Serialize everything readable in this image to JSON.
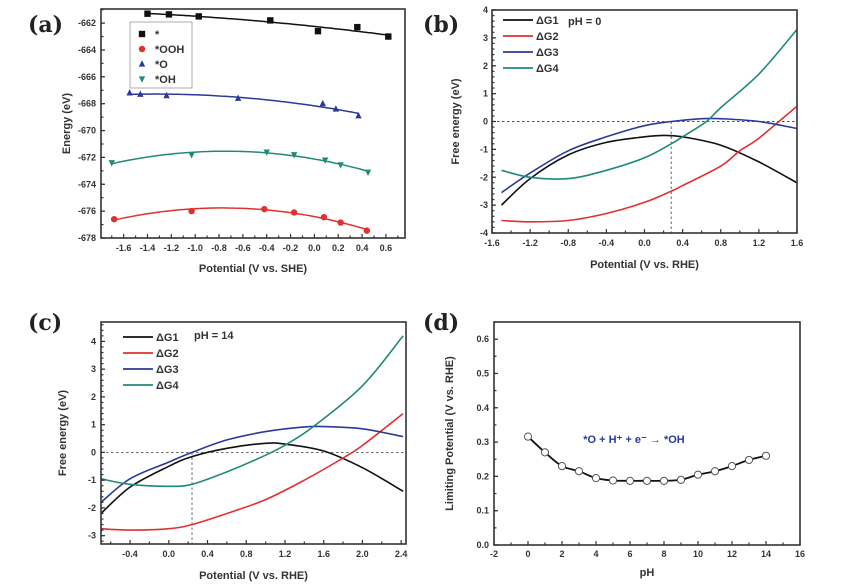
{
  "chart_data": [
    {
      "id": "a",
      "panel_label": "(a)",
      "type": "scatter",
      "fit": "quadratic",
      "title": "",
      "xlabel": "Potential (V vs. SHE)",
      "ylabel": "Energy (eV)",
      "xlim": [
        -1.79,
        0.76
      ],
      "ylim": [
        -678,
        -660.95
      ],
      "xticks": [
        -1.6,
        -1.4,
        -1.2,
        -1.0,
        -0.8,
        -0.6,
        -0.4,
        -0.2,
        0.0,
        0.2,
        0.4,
        0.6
      ],
      "xtick_labels": [
        "-1.6",
        "-1.4",
        "-1.2",
        "-1.0",
        "-0.8",
        "-0.6",
        "-0.4",
        "-0.2",
        "0.0",
        "0.2",
        "0.4",
        "0.6"
      ],
      "yticks": [
        -678,
        -676,
        -674,
        -672,
        -670,
        -668,
        -666,
        -664,
        -662
      ],
      "ytick_labels": [
        "-678",
        "-676",
        "-674",
        "-672",
        "-670",
        "-668",
        "-666",
        "-664",
        "-662"
      ],
      "grid": false,
      "legend_position": "top-left",
      "series": [
        {
          "name": "*",
          "color": "#111111",
          "marker": "square",
          "x": [
            -1.4,
            -1.22,
            -0.97,
            -0.37,
            0.03,
            0.36,
            0.62
          ],
          "y": [
            -661.3,
            -661.35,
            -661.5,
            -661.8,
            -662.6,
            -662.3,
            -663.0
          ]
        },
        {
          "name": "*OOH",
          "color": "#e03030",
          "marker": "circle",
          "x": [
            -1.68,
            -1.03,
            -0.42,
            -0.17,
            0.08,
            0.22,
            0.44
          ],
          "y": [
            -676.6,
            -676.0,
            -675.85,
            -676.1,
            -676.45,
            -676.85,
            -677.45
          ]
        },
        {
          "name": "*O",
          "color": "#2b3a9a",
          "marker": "triangle-up",
          "x": [
            -1.55,
            -1.46,
            -1.24,
            -0.64,
            0.07,
            0.18,
            0.37
          ],
          "y": [
            -667.2,
            -667.3,
            -667.4,
            -667.6,
            -668.0,
            -668.4,
            -668.9
          ]
        },
        {
          "name": "*OH",
          "color": "#1f8a7a",
          "marker": "triangle-down",
          "x": [
            -1.7,
            -1.03,
            -0.4,
            -0.17,
            0.09,
            0.22,
            0.45
          ],
          "y": [
            -672.4,
            -671.8,
            -671.6,
            -671.8,
            -672.2,
            -672.55,
            -673.1
          ]
        }
      ]
    },
    {
      "id": "b",
      "panel_label": "(b)",
      "type": "line",
      "title": "",
      "annotation": "pH = 0",
      "xlabel": "Potential (V vs. RHE)",
      "ylabel": "Free energy (eV)",
      "xlim": [
        -1.6,
        1.6
      ],
      "ylim": [
        -4,
        4
      ],
      "xticks": [
        -1.6,
        -1.2,
        -0.8,
        -0.4,
        0.0,
        0.4,
        0.8,
        1.2,
        1.6
      ],
      "xtick_labels": [
        "-1.6",
        "-1.2",
        "-0.8",
        "-0.4",
        "0.0",
        "0.4",
        "0.8",
        "1.2",
        "1.6"
      ],
      "yticks": [
        -4,
        -3,
        -2,
        -1,
        0,
        1,
        2,
        3,
        4
      ],
      "ytick_labels": [
        "-4",
        "-3",
        "-2",
        "-1",
        "0",
        "1",
        "2",
        "3",
        "4"
      ],
      "grid": false,
      "legend_position": "top-left",
      "reference_lines": {
        "y": 0,
        "x": 0.28
      },
      "series": [
        {
          "name": "ΔG1",
          "color": "#111111",
          "x": [
            -1.5,
            -1.2,
            -0.8,
            -0.4,
            0.0,
            0.2,
            0.4,
            0.8,
            1.2,
            1.6
          ],
          "y": [
            -3.0,
            -2.05,
            -1.2,
            -0.75,
            -0.55,
            -0.5,
            -0.55,
            -0.85,
            -1.45,
            -2.2
          ]
        },
        {
          "name": "ΔG2",
          "color": "#e03030",
          "x": [
            -1.5,
            -1.2,
            -0.8,
            -0.4,
            0.0,
            0.28,
            0.4,
            0.8,
            1.0,
            1.2,
            1.6
          ],
          "y": [
            -3.55,
            -3.6,
            -3.55,
            -3.3,
            -2.9,
            -2.5,
            -2.3,
            -1.6,
            -1.05,
            -0.6,
            0.55
          ]
        },
        {
          "name": "ΔG3",
          "color": "#2b3a9a",
          "x": [
            -1.5,
            -1.2,
            -0.8,
            -0.4,
            0.0,
            0.28,
            0.6,
            0.8,
            1.2,
            1.6
          ],
          "y": [
            -2.55,
            -1.85,
            -1.05,
            -0.55,
            -0.15,
            0.0,
            0.1,
            0.1,
            0.0,
            -0.25
          ]
        },
        {
          "name": "ΔG4",
          "color": "#1f8a7a",
          "x": [
            -1.5,
            -1.2,
            -0.8,
            -0.4,
            0.0,
            0.28,
            0.4,
            0.65,
            0.8,
            1.2,
            1.6
          ],
          "y": [
            -1.75,
            -2.0,
            -2.05,
            -1.75,
            -1.3,
            -0.8,
            -0.55,
            0.0,
            0.5,
            1.7,
            3.3
          ]
        }
      ]
    },
    {
      "id": "c",
      "panel_label": "(c)",
      "type": "line",
      "title": "",
      "annotation": "pH = 14",
      "xlabel": "Potential (V vs. RHE)",
      "ylabel": "Free energy (eV)",
      "xlim": [
        -0.7,
        2.45
      ],
      "ylim": [
        -3.3,
        4.7
      ],
      "xticks": [
        -0.4,
        0.0,
        0.4,
        0.8,
        1.2,
        1.6,
        2.0,
        2.4
      ],
      "xtick_labels": [
        "-0.4",
        "0.0",
        "0.4",
        "0.8",
        "1.2",
        "1.6",
        "2.0",
        "2.4"
      ],
      "yticks": [
        -3,
        -2,
        -1,
        0,
        1,
        2,
        3,
        4
      ],
      "ytick_labels": [
        "-3",
        "-2",
        "-1",
        "0",
        "1",
        "2",
        "3",
        "4"
      ],
      "grid": false,
      "legend_position": "top-left",
      "reference_lines": {
        "y": 0,
        "x": 0.24
      },
      "series": [
        {
          "name": "ΔG1",
          "color": "#111111",
          "x": [
            -0.7,
            -0.4,
            0.0,
            0.24,
            0.6,
            1.0,
            1.2,
            1.6,
            2.0,
            2.42
          ],
          "y": [
            -2.2,
            -1.25,
            -0.5,
            -0.15,
            0.15,
            0.33,
            0.3,
            0.05,
            -0.55,
            -1.4
          ]
        },
        {
          "name": "ΔG2",
          "color": "#e03030",
          "x": [
            -0.7,
            -0.4,
            0.0,
            0.24,
            0.6,
            1.0,
            1.4,
            1.8,
            2.0,
            2.42
          ],
          "y": [
            -2.75,
            -2.8,
            -2.75,
            -2.6,
            -2.2,
            -1.7,
            -1.0,
            -0.2,
            0.25,
            1.4
          ]
        },
        {
          "name": "ΔG3",
          "color": "#2b3a9a",
          "x": [
            -0.7,
            -0.4,
            0.0,
            0.24,
            0.6,
            1.0,
            1.4,
            1.6,
            2.0,
            2.42
          ],
          "y": [
            -1.8,
            -0.95,
            -0.35,
            0.0,
            0.45,
            0.75,
            0.92,
            0.93,
            0.85,
            0.57
          ]
        },
        {
          "name": "ΔG4",
          "color": "#1f8a7a",
          "x": [
            -0.7,
            -0.4,
            0.0,
            0.24,
            0.6,
            1.0,
            1.22,
            1.5,
            2.0,
            2.42
          ],
          "y": [
            -0.95,
            -1.15,
            -1.22,
            -1.15,
            -0.7,
            -0.1,
            0.3,
            0.95,
            2.4,
            4.2
          ]
        }
      ]
    },
    {
      "id": "d",
      "panel_label": "(d)",
      "type": "line",
      "markers": "open-circle",
      "title": "",
      "annotation": "*O + H⁺ + e⁻ → *OH",
      "annotation_color": "#2b3a9a",
      "xlabel": "pH",
      "ylabel": "Limiting Potential (V vs. RHE)",
      "xlim": [
        -2,
        16
      ],
      "ylim": [
        0.0,
        0.65
      ],
      "xticks": [
        -2,
        0,
        2,
        4,
        6,
        8,
        10,
        12,
        14,
        16
      ],
      "xtick_labels": [
        "-2",
        "0",
        "2",
        "4",
        "6",
        "8",
        "10",
        "12",
        "14",
        "16"
      ],
      "yticks": [
        0.0,
        0.1,
        0.2,
        0.3,
        0.4,
        0.5,
        0.6
      ],
      "ytick_labels": [
        "0.0",
        "0.1",
        "0.2",
        "0.3",
        "0.4",
        "0.5",
        "0.6"
      ],
      "grid": false,
      "series": [
        {
          "name": "Limiting potential",
          "color": "#111111",
          "x": [
            0,
            1,
            2,
            3,
            4,
            5,
            6,
            7,
            8,
            9,
            10,
            11,
            12,
            13,
            14
          ],
          "y": [
            0.316,
            0.27,
            0.23,
            0.215,
            0.195,
            0.188,
            0.187,
            0.187,
            0.187,
            0.19,
            0.205,
            0.215,
            0.23,
            0.248,
            0.26
          ]
        }
      ]
    }
  ]
}
